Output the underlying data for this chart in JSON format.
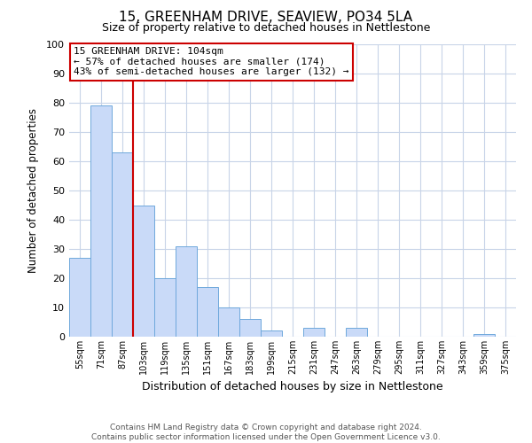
{
  "title": "15, GREENHAM DRIVE, SEAVIEW, PO34 5LA",
  "subtitle": "Size of property relative to detached houses in Nettlestone",
  "xlabel": "Distribution of detached houses by size in Nettlestone",
  "ylabel": "Number of detached properties",
  "bar_labels": [
    "55sqm",
    "71sqm",
    "87sqm",
    "103sqm",
    "119sqm",
    "135sqm",
    "151sqm",
    "167sqm",
    "183sqm",
    "199sqm",
    "215sqm",
    "231sqm",
    "247sqm",
    "263sqm",
    "279sqm",
    "295sqm",
    "311sqm",
    "327sqm",
    "343sqm",
    "359sqm",
    "375sqm"
  ],
  "bar_values": [
    27,
    79,
    63,
    45,
    20,
    31,
    17,
    10,
    6,
    2,
    0,
    3,
    0,
    3,
    0,
    0,
    0,
    0,
    0,
    1,
    0
  ],
  "bar_color": "#c9daf8",
  "bar_edge_color": "#6fa8dc",
  "vline_color": "#cc0000",
  "ylim": [
    0,
    100
  ],
  "yticks": [
    0,
    10,
    20,
    30,
    40,
    50,
    60,
    70,
    80,
    90,
    100
  ],
  "annotation_title": "15 GREENHAM DRIVE: 104sqm",
  "annotation_line1": "← 57% of detached houses are smaller (174)",
  "annotation_line2": "43% of semi-detached houses are larger (132) →",
  "annotation_box_color": "#ffffff",
  "annotation_box_edge": "#cc0000",
  "footer_line1": "Contains HM Land Registry data © Crown copyright and database right 2024.",
  "footer_line2": "Contains public sector information licensed under the Open Government Licence v3.0.",
  "bg_color": "#ffffff",
  "grid_color": "#c8d4e8"
}
